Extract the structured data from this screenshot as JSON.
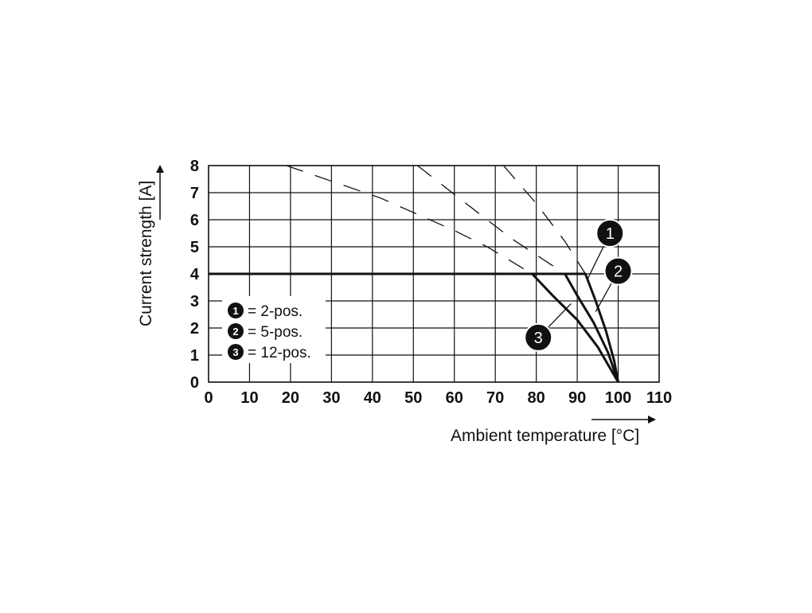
{
  "chart_data": {
    "type": "line",
    "xlabel": "Ambient temperature [°C]",
    "ylabel": "Current strength [A]",
    "xlim": [
      0,
      110
    ],
    "ylim": [
      0,
      8
    ],
    "x_ticks": [
      0,
      10,
      20,
      30,
      40,
      50,
      60,
      70,
      80,
      90,
      100,
      110
    ],
    "y_ticks": [
      0,
      1,
      2,
      3,
      4,
      5,
      6,
      7,
      8
    ],
    "grid": true,
    "legend_position": "bottom-left inside plot",
    "legend": [
      {
        "marker": "1",
        "text": "= 2-pos."
      },
      {
        "marker": "2",
        "text": "= 5-pos."
      },
      {
        "marker": "3",
        "text": "= 12-pos."
      }
    ],
    "series": [
      {
        "marker": "1",
        "style": "solid",
        "points": [
          [
            0,
            4
          ],
          [
            92,
            4
          ],
          [
            94.5,
            3.0
          ],
          [
            97,
            1.9
          ],
          [
            99,
            0.8
          ],
          [
            100,
            0
          ]
        ]
      },
      {
        "marker": "2",
        "style": "solid",
        "points": [
          [
            0,
            4
          ],
          [
            87,
            4
          ],
          [
            90,
            3.2
          ],
          [
            94,
            2.2
          ],
          [
            97.5,
            1.1
          ],
          [
            100,
            0
          ]
        ]
      },
      {
        "marker": "3",
        "style": "solid",
        "points": [
          [
            0,
            4
          ],
          [
            79,
            4
          ],
          [
            84,
            3.2
          ],
          [
            90,
            2.3
          ],
          [
            95,
            1.3
          ],
          [
            100,
            0
          ]
        ]
      },
      {
        "marker": "1",
        "style": "dashed",
        "points": [
          [
            72,
            8
          ],
          [
            80,
            6.6
          ],
          [
            87,
            5.2
          ],
          [
            92,
            4
          ]
        ]
      },
      {
        "marker": "2",
        "style": "dashed",
        "points": [
          [
            51,
            8
          ],
          [
            62,
            6.7
          ],
          [
            74,
            5.3
          ],
          [
            87,
            4
          ]
        ]
      },
      {
        "marker": "3",
        "style": "dashed",
        "points": [
          [
            19,
            8
          ],
          [
            42,
            6.8
          ],
          [
            60,
            5.6
          ],
          [
            68,
            5.0
          ],
          [
            79,
            4
          ]
        ]
      }
    ],
    "callouts": [
      {
        "marker": "1",
        "label_at": [
          98,
          5.5
        ],
        "pointer_to": [
          92.5,
          3.8
        ]
      },
      {
        "marker": "2",
        "label_at": [
          100,
          4.1
        ],
        "pointer_to": [
          94.5,
          2.6
        ]
      },
      {
        "marker": "3",
        "label_at": [
          80.5,
          1.65
        ],
        "pointer_to": [
          88.5,
          2.9
        ]
      }
    ]
  }
}
